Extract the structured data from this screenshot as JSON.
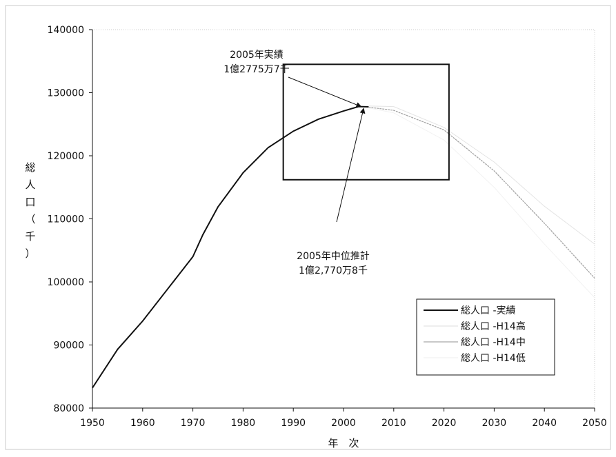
{
  "chart_data": {
    "type": "line",
    "title": "",
    "xlabel": "年　次",
    "ylabel_chars": [
      "総",
      "人",
      "口",
      "（",
      "千",
      "）"
    ],
    "xlim": [
      1950,
      2050
    ],
    "ylim": [
      80000,
      140000
    ],
    "x_ticks": [
      1950,
      1960,
      1970,
      1980,
      1990,
      2000,
      2010,
      2020,
      2030,
      2040,
      2050
    ],
    "y_ticks": [
      80000,
      90000,
      100000,
      110000,
      120000,
      130000,
      140000
    ],
    "x_tick_labels": [
      "1950",
      "1960",
      "1970",
      "1980",
      "1990",
      "2000",
      "2010",
      "2020",
      "2030",
      "2040",
      "2050"
    ],
    "y_tick_labels": [
      "80000",
      "90000",
      "100000",
      "110000",
      "120000",
      "130000",
      "140000"
    ],
    "grid": false,
    "legend_position": "bottom-right",
    "series": [
      {
        "name": "総人口 -実績",
        "color": "#111111",
        "x": [
          1950,
          1955,
          1960,
          1965,
          1970,
          1972,
          1975,
          1980,
          1985,
          1990,
          1995,
          2000,
          2003,
          2005
        ],
        "y": [
          83200,
          89300,
          93800,
          98900,
          104000,
          107500,
          111900,
          117300,
          121300,
          123900,
          125800,
          127100,
          127800,
          127757
        ]
      },
      {
        "name": "総人口 -H14高",
        "color": "#e4e4e4",
        "x": [
          2005,
          2010,
          2020,
          2030,
          2040,
          2050
        ],
        "y": [
          127900,
          127800,
          124500,
          119000,
          112000,
          106000
        ]
      },
      {
        "name": "総人口 -H14中",
        "color": "#a6a6a6",
        "x": [
          2005,
          2010,
          2020,
          2030,
          2040,
          2050
        ],
        "y": [
          127708,
          127200,
          124100,
          117600,
          109300,
          100600
        ]
      },
      {
        "name": "総人口 -H14低",
        "color": "#f2f2f2",
        "x": [
          2005,
          2010,
          2020,
          2030,
          2040,
          2050
        ],
        "y": [
          127600,
          126800,
          122500,
          115000,
          106000,
          97500
        ]
      }
    ],
    "annotations": [
      {
        "id": "actual",
        "lines": [
          "2005年実績",
          "1億2775万7千"
        ],
        "target": [
          2003.5,
          127800
        ]
      },
      {
        "id": "projection",
        "lines": [
          "2005年中位推計",
          "1億2,770万8千"
        ],
        "target": [
          2004,
          127500
        ]
      }
    ],
    "highlight_box": {
      "x0": 1988,
      "x1": 2021,
      "y0": 116200,
      "y1": 134500
    }
  }
}
